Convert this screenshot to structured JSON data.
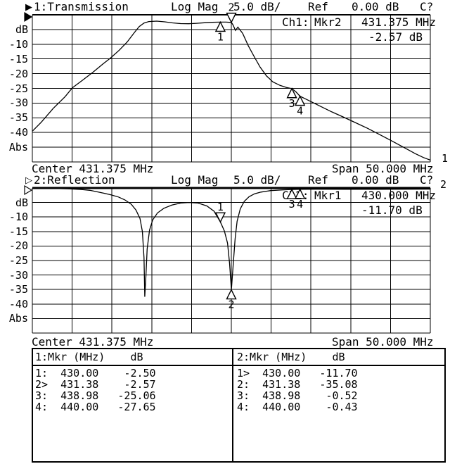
{
  "colors": {
    "background": "#ffffff",
    "foreground": "#000000"
  },
  "channels": [
    {
      "title": {
        "indicator": "▶",
        "indicator_style": "filled",
        "label": "1:Transmission",
        "format": "Log Mag",
        "scale": "5.0 dB/",
        "ref_label": "Ref",
        "ref_value": "0.00 dB",
        "cal_status": "C?"
      },
      "marker_readout": {
        "channel": "Ch1:",
        "marker": "Mkr2",
        "freq": "431.375 MHz",
        "value": "-2.57 dB"
      },
      "y_axis": {
        "unit": "dB",
        "ticks": [
          "-10",
          "-15",
          "-20",
          "-25",
          "-30",
          "-35",
          "-40"
        ],
        "bottom_label": "Abs"
      },
      "x_axis": {
        "center_label": "Center 431.375 MHz",
        "span_label": "Span 50.000 MHz"
      },
      "trace_number": "1"
    },
    {
      "title": {
        "indicator": "▷",
        "indicator_style": "hollow",
        "label": "2:Reflection",
        "format": "Log Mag",
        "scale": "5.0 dB/",
        "ref_label": "Ref",
        "ref_value": "0.00 dB",
        "cal_status": "C?"
      },
      "marker_readout": {
        "channel": "Ch2:",
        "marker": "Mkr1",
        "freq": "430.000 MHz",
        "value": "-11.70 dB"
      },
      "y_axis": {
        "unit": "dB",
        "ticks": [
          "-10",
          "-15",
          "-20",
          "-25",
          "-30",
          "-35",
          "-40"
        ],
        "bottom_label": "Abs"
      },
      "x_axis": {
        "center_label": "Center 431.375 MHz",
        "span_label": "Span 50.000 MHz"
      },
      "trace_number": "2"
    }
  ],
  "chart_data": [
    {
      "type": "line",
      "name": "Transmission log magnitude trace",
      "title": "1:Transmission Log Mag 5.0 dB/ Ref 0.00 dB",
      "x_range_mhz": [
        406.375,
        456.375
      ],
      "center_mhz": 431.375,
      "span_mhz": 50.0,
      "ylim": [
        -50,
        0
      ],
      "db_per_div": 5.0,
      "ref_db": 0.0,
      "grid": true,
      "points": [
        [
          406.4,
          -39.5
        ],
        [
          407.5,
          -36.5
        ],
        [
          409.0,
          -31.8
        ],
        [
          410.5,
          -27.8
        ],
        [
          411.4,
          -24.8
        ],
        [
          412.5,
          -22.6
        ],
        [
          414.0,
          -19.5
        ],
        [
          415.2,
          -16.8
        ],
        [
          416.2,
          -14.7
        ],
        [
          417.3,
          -12.0
        ],
        [
          418.3,
          -9.2
        ],
        [
          419.2,
          -6.0
        ],
        [
          419.8,
          -4.0
        ],
        [
          420.4,
          -2.8
        ],
        [
          421.0,
          -2.3
        ],
        [
          422.0,
          -2.15
        ],
        [
          423.0,
          -2.4
        ],
        [
          424.0,
          -2.75
        ],
        [
          425.0,
          -3.0
        ],
        [
          426.0,
          -3.05
        ],
        [
          427.0,
          -2.9
        ],
        [
          428.0,
          -2.7
        ],
        [
          429.0,
          -2.55
        ],
        [
          430.0,
          -2.5
        ],
        [
          430.7,
          -2.5
        ],
        [
          431.1,
          -2.55
        ],
        [
          431.38,
          -2.57
        ],
        [
          431.6,
          -3.5
        ],
        [
          431.9,
          -5.3
        ],
        [
          432.2,
          -4.2
        ],
        [
          432.8,
          -6.3
        ],
        [
          433.5,
          -10.5
        ],
        [
          434.2,
          -14.0
        ],
        [
          435.0,
          -17.8
        ],
        [
          435.8,
          -20.8
        ],
        [
          436.6,
          -22.8
        ],
        [
          437.5,
          -24.0
        ],
        [
          438.3,
          -24.7
        ],
        [
          438.98,
          -25.06
        ],
        [
          439.5,
          -26.2
        ],
        [
          440.0,
          -27.65
        ],
        [
          441.0,
          -29.0
        ],
        [
          442.5,
          -31.0
        ],
        [
          444.0,
          -33.0
        ],
        [
          445.5,
          -34.8
        ],
        [
          447.0,
          -36.7
        ],
        [
          448.5,
          -38.6
        ],
        [
          450.0,
          -40.7
        ],
        [
          451.5,
          -42.8
        ],
        [
          453.0,
          -45.0
        ],
        [
          454.5,
          -47.2
        ],
        [
          455.5,
          -48.5
        ],
        [
          456.4,
          -49.4
        ]
      ],
      "markers": [
        {
          "label": "1",
          "freq": 430.0,
          "db": -2.5,
          "symbol": "up"
        },
        {
          "label": "2",
          "freq": 431.375,
          "db": -2.57,
          "symbol": "down"
        },
        {
          "label": "3",
          "freq": 438.98,
          "db": -25.06,
          "symbol": "up"
        },
        {
          "label": "4",
          "freq": 440.0,
          "db": -27.65,
          "symbol": "up"
        }
      ]
    },
    {
      "type": "line",
      "name": "Reflection log magnitude trace",
      "title": "2:Reflection Log Mag 5.0 dB/ Ref 0.00 dB",
      "x_range_mhz": [
        406.375,
        456.375
      ],
      "center_mhz": 431.375,
      "span_mhz": 50.0,
      "ylim": [
        -50,
        0
      ],
      "db_per_div": 5.0,
      "ref_db": 0.0,
      "grid": true,
      "points": [
        [
          406.4,
          -0.1
        ],
        [
          409.0,
          -0.15
        ],
        [
          411.0,
          -0.3
        ],
        [
          412.5,
          -0.5
        ],
        [
          413.6,
          -0.8
        ],
        [
          414.5,
          -1.3
        ],
        [
          415.5,
          -1.9
        ],
        [
          416.3,
          -2.4
        ],
        [
          417.2,
          -3.1
        ],
        [
          418.0,
          -4.1
        ],
        [
          418.8,
          -5.6
        ],
        [
          419.4,
          -7.6
        ],
        [
          419.9,
          -10.5
        ],
        [
          420.2,
          -15.0
        ],
        [
          420.4,
          -24.0
        ],
        [
          420.5,
          -37.5
        ],
        [
          420.65,
          -30.0
        ],
        [
          420.8,
          -21.0
        ],
        [
          421.1,
          -14.5
        ],
        [
          421.5,
          -11.0
        ],
        [
          422.1,
          -8.6
        ],
        [
          422.9,
          -7.0
        ],
        [
          423.9,
          -5.9
        ],
        [
          425.0,
          -5.2
        ],
        [
          426.0,
          -5.0
        ],
        [
          427.2,
          -5.2
        ],
        [
          428.3,
          -6.2
        ],
        [
          429.2,
          -8.0
        ],
        [
          430.0,
          -11.7
        ],
        [
          430.5,
          -14.8
        ],
        [
          430.9,
          -19.0
        ],
        [
          431.15,
          -26.0
        ],
        [
          431.38,
          -35.08
        ],
        [
          431.6,
          -27.0
        ],
        [
          431.85,
          -17.5
        ],
        [
          432.1,
          -11.5
        ],
        [
          432.5,
          -7.2
        ],
        [
          433.0,
          -4.6
        ],
        [
          433.6,
          -3.0
        ],
        [
          434.3,
          -2.0
        ],
        [
          435.1,
          -1.4
        ],
        [
          436.3,
          -0.9
        ],
        [
          437.8,
          -0.65
        ],
        [
          439.0,
          -0.52
        ],
        [
          440.0,
          -0.43
        ],
        [
          442.0,
          -0.42
        ],
        [
          446.0,
          -0.45
        ],
        [
          450.0,
          -0.45
        ],
        [
          453.0,
          -0.42
        ],
        [
          456.4,
          -0.4
        ]
      ],
      "markers": [
        {
          "label": "1",
          "freq": 430.0,
          "db": -11.7,
          "symbol": "down"
        },
        {
          "label": "2",
          "freq": 431.375,
          "db": -35.08,
          "symbol": "up"
        },
        {
          "label": "3",
          "freq": 438.98,
          "db": -0.52,
          "symbol": "up"
        },
        {
          "label": "4",
          "freq": 440.0,
          "db": -0.43,
          "symbol": "up"
        }
      ]
    }
  ],
  "marker_table": {
    "left": {
      "header": "1:Mkr (MHz)    dB",
      "rows": [
        "1:  430.00    -2.50",
        "2>  431.38    -2.57",
        "3:  438.98   -25.06",
        "4:  440.00   -27.65"
      ]
    },
    "right": {
      "header": "2:Mkr (MHz)    dB",
      "rows": [
        "1>  430.00   -11.70",
        "2:  431.38   -35.08",
        "3:  438.98    -0.52",
        "4:  440.00    -0.43"
      ]
    }
  }
}
